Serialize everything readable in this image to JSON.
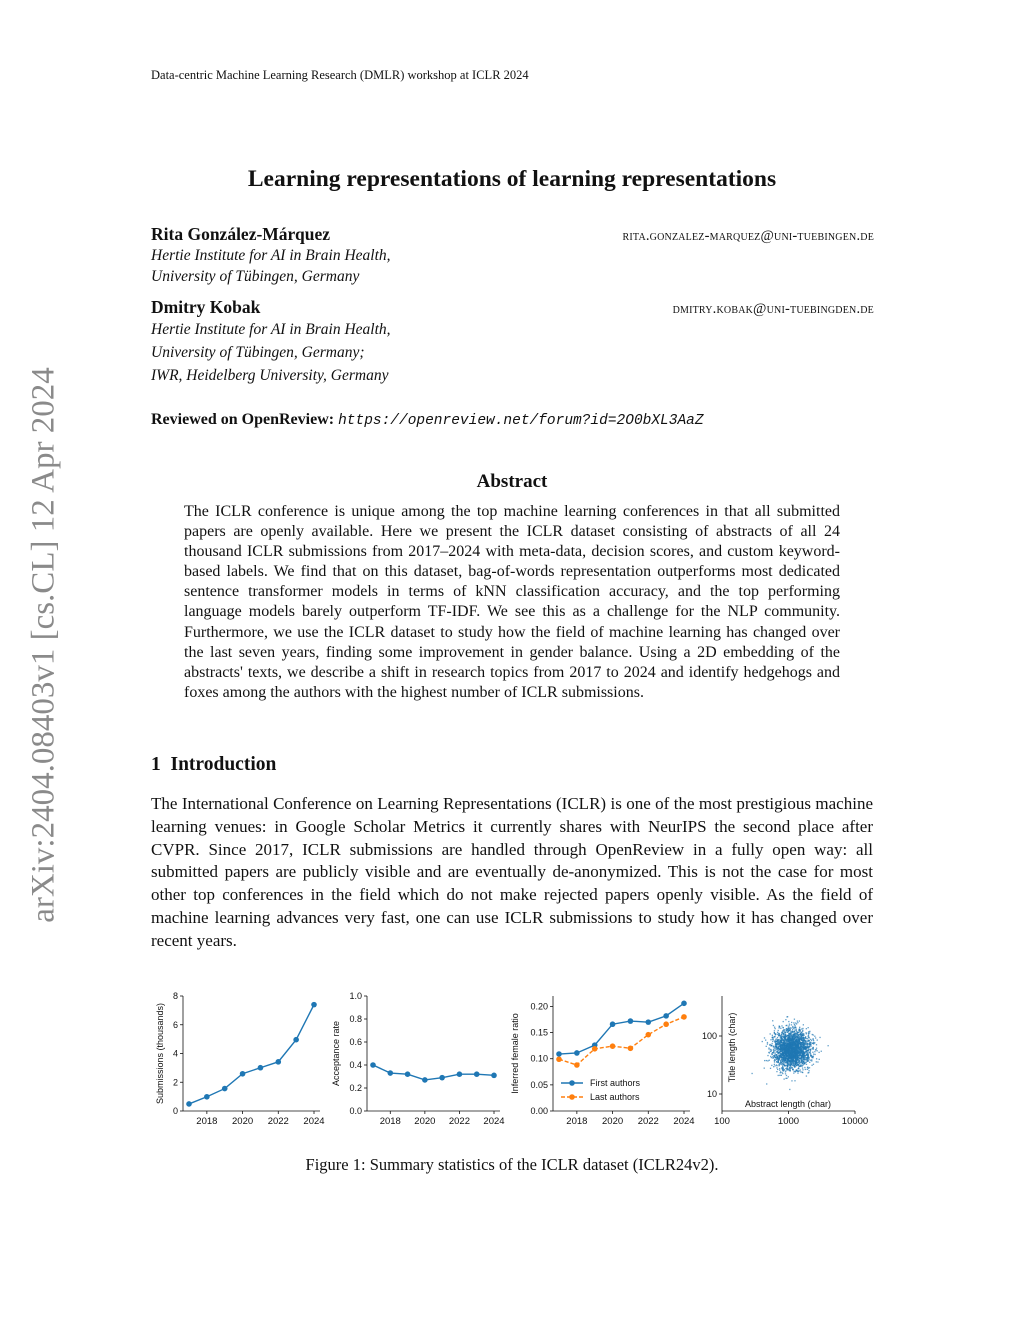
{
  "header": "Data-centric Machine Learning Research (DMLR) workshop at ICLR 2024",
  "title": "Learning representations of learning representations",
  "authors": [
    {
      "name": "Rita González-Márquez",
      "email": "rita.gonzalez-marquez@uni-tuebingen.de",
      "affiliation": [
        "Hertie Institute for AI in Brain Health,",
        "University of Tübingen, Germany"
      ]
    },
    {
      "name": "Dmitry Kobak",
      "email": "dmitry.kobak@uni-tuebingden.de",
      "affiliation": [
        "Hertie Institute for AI in Brain Health,",
        "University of Tübingen, Germany;",
        "IWR, Heidelberg University, Germany"
      ]
    }
  ],
  "review": {
    "label": "Reviewed on OpenReview:",
    "url": "https://openreview.net/forum?id=2O0bXL3AaZ"
  },
  "abstract_title": "Abstract",
  "abstract": "The ICLR conference is unique among the top machine learning conferences in that all submitted papers are openly available. Here we present the ICLR dataset consisting of abstracts of all 24 thousand ICLR submissions from 2017–2024 with meta-data, decision scores, and custom keyword-based labels. We find that on this dataset, bag-of-words representation outperforms most dedicated sentence transformer models in terms of kNN classification accuracy, and the top performing language models barely outperform TF-IDF. We see this as a challenge for the NLP community. Furthermore, we use the ICLR dataset to study how the field of machine learning has changed over the last seven years, finding some improvement in gender balance. Using a 2D embedding of the abstracts' texts, we describe a shift in research topics from 2017 to 2024 and identify hedgehogs and foxes among the authors with the highest number of ICLR submissions.",
  "section": {
    "number": "1",
    "title": "Introduction"
  },
  "intro": "The International Conference on Learning Representations (ICLR) is one of the most prestigious machine learning venues: in Google Scholar Metrics it currently shares with NeurIPS the second place after CVPR. Since 2017, ICLR submissions are handled through OpenReview in a fully open way: all submitted papers are publicly visible and are eventually de-anonymized. This is not the case for most other top conferences in the field which do not make rejected papers openly visible. As the field of machine learning advances very fast, one can use ICLR submissions to study how it has changed over recent years.",
  "caption": "Figure 1: Summary statistics of the ICLR dataset (ICLR24v2).",
  "stamp": "arXiv:2404.08403v1  [cs.CL]  12 Apr 2024",
  "colors": {
    "blue": "#1f77b4",
    "orange": "#ff7f0e"
  },
  "chart_data": [
    {
      "type": "line",
      "ylabel": "Submissions (thousands)",
      "x": [
        2017,
        2018,
        2019,
        2020,
        2021,
        2022,
        2023,
        2024
      ],
      "xticks": [
        "2018",
        "2020",
        "2022",
        "2024"
      ],
      "yticks": [
        "0",
        "2",
        "4",
        "6",
        "8"
      ],
      "ylim": [
        0,
        8
      ],
      "series": [
        {
          "values": [
            0.49,
            0.99,
            1.56,
            2.59,
            3.01,
            3.42,
            4.96,
            7.4
          ],
          "color": "#1f77b4",
          "style": "solid"
        }
      ]
    },
    {
      "type": "line",
      "ylabel": "Acceptance rate",
      "x": [
        2017,
        2018,
        2019,
        2020,
        2021,
        2022,
        2023,
        2024
      ],
      "xticks": [
        "2018",
        "2020",
        "2022",
        "2024"
      ],
      "yticks": [
        "0.0",
        "0.2",
        "0.4",
        "0.6",
        "0.8",
        "1.0"
      ],
      "ylim": [
        0,
        1
      ],
      "series": [
        {
          "values": [
            0.4,
            0.33,
            0.32,
            0.27,
            0.29,
            0.32,
            0.32,
            0.31
          ],
          "color": "#1f77b4",
          "style": "solid"
        }
      ]
    },
    {
      "type": "line",
      "ylabel": "Inferred female ratio",
      "x": [
        2017,
        2018,
        2019,
        2020,
        2021,
        2022,
        2023,
        2024
      ],
      "xticks": [
        "2018",
        "2020",
        "2022",
        "2024"
      ],
      "yticks": [
        "0.00",
        "0.05",
        "0.10",
        "0.15",
        "0.20"
      ],
      "ylim": [
        0,
        0.22
      ],
      "legend": "lower-left",
      "series": [
        {
          "name": "First authors",
          "values": [
            0.109,
            0.111,
            0.126,
            0.166,
            0.172,
            0.17,
            0.182,
            0.206
          ],
          "color": "#1f77b4",
          "style": "solid"
        },
        {
          "name": "Last authors",
          "values": [
            0.099,
            0.088,
            0.119,
            0.124,
            0.12,
            0.146,
            0.166,
            0.18
          ],
          "color": "#ff7f0e",
          "style": "dashed"
        }
      ]
    },
    {
      "type": "scatter",
      "xlabel": "Abstract length (char)",
      "ylabel": "Title length (char)",
      "xscale": "log",
      "yscale": "log",
      "xlim": [
        100,
        10000
      ],
      "ylim": [
        5,
        500
      ],
      "xticks": [
        "100",
        "1000",
        "10000"
      ],
      "yticks": [
        "10",
        "100"
      ],
      "cluster_center": {
        "x": 1100,
        "y": 60
      },
      "color": "#1f77b4"
    }
  ]
}
